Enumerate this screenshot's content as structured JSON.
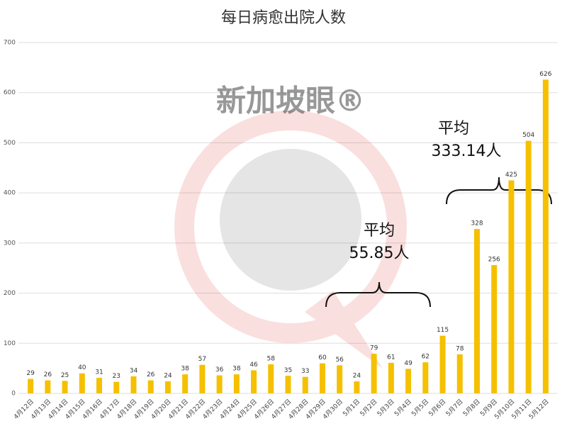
{
  "chart_data": {
    "type": "bar",
    "title": "每日病愈出院人数",
    "watermark": "新加坡眼®",
    "categories": [
      "4月12日",
      "4月13日",
      "4月14日",
      "4月15日",
      "4月16日",
      "4月17日",
      "4月18日",
      "4月19日",
      "4月20日",
      "4月21日",
      "4月22日",
      "4月23日",
      "4月24日",
      "4月25日",
      "4月26日",
      "4月27日",
      "4月28日",
      "4月29日",
      "4月30日",
      "5月1日",
      "5月2日",
      "5月3日",
      "5月4日",
      "5月5日",
      "5月6日",
      "5月7日",
      "5月8日",
      "5月9日",
      "5月10日",
      "5月11日",
      "5月12日"
    ],
    "values": [
      29,
      26,
      25,
      40,
      31,
      23,
      34,
      26,
      24,
      38,
      57,
      36,
      38,
      46,
      58,
      35,
      33,
      60,
      56,
      24,
      79,
      61,
      49,
      62,
      115,
      78,
      328,
      256,
      425,
      504,
      626
    ],
    "color": "#f5c000",
    "ylim": [
      0,
      700
    ],
    "yticks": [
      0,
      100,
      200,
      300,
      400,
      500,
      600,
      700
    ],
    "grid": true,
    "annotations": [
      [
        "平均",
        "55.85人"
      ],
      [
        "平均",
        "333.14人"
      ]
    ]
  }
}
